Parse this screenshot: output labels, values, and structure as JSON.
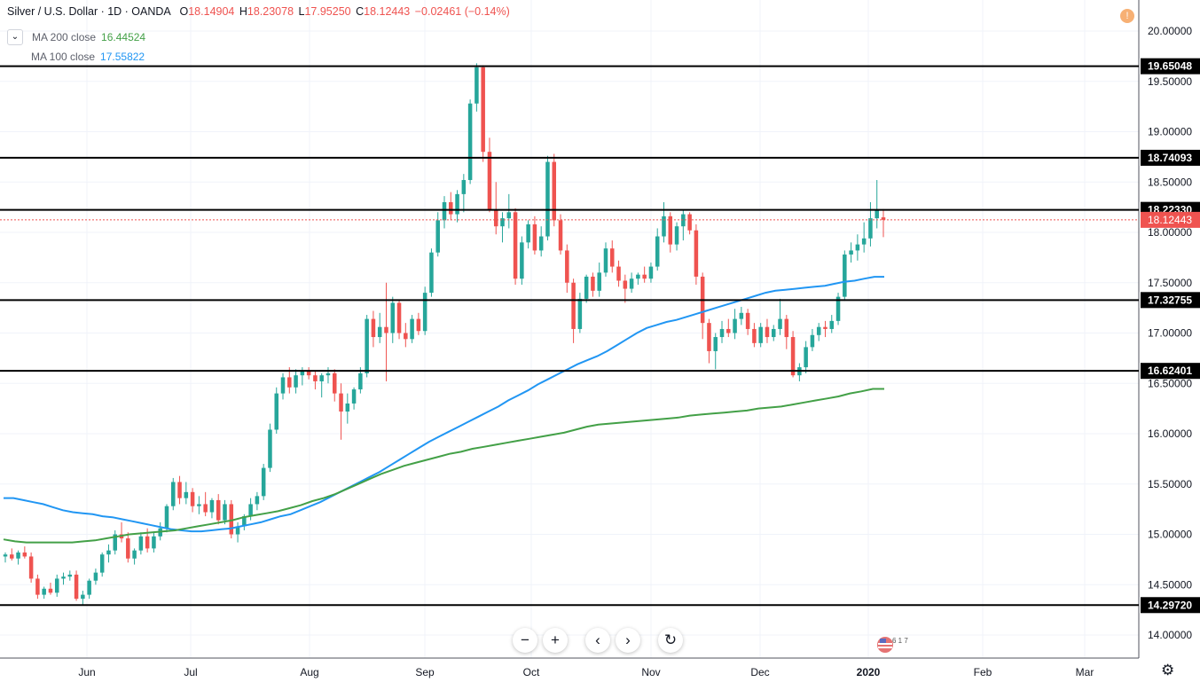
{
  "header": {
    "symbol": "Silver / U.S. Dollar · 1D · OANDA",
    "open_label": "O",
    "open": "18.14904",
    "high_label": "H",
    "high": "18.23078",
    "low_label": "L",
    "low": "17.95250",
    "close_label": "C",
    "close": "18.12443",
    "change": "−0.02461 (−0.14%)"
  },
  "indicators": [
    {
      "name": "MA 200 close",
      "value": "16.44524",
      "color": "#43a047"
    },
    {
      "name": "MA 100 close",
      "value": "17.55822",
      "color": "#2196f3"
    }
  ],
  "collapse_glyph": "⌄",
  "colors": {
    "up": "#26a69a",
    "down": "#ef5350",
    "grid": "#f0f3fa",
    "axis": "#131722"
  },
  "toolbar": {
    "zoom_out": "−",
    "zoom_in": "+",
    "back": "‹",
    "forward": "›",
    "reset": "↻"
  },
  "icons": {
    "alert": "!",
    "settings": "⚙",
    "event_count": "6 1 7"
  },
  "chart_data": {
    "type": "candlestick",
    "title": "Silver / U.S. Dollar · 1D · OANDA",
    "y_axis": {
      "range": [
        13.86,
        20.3
      ],
      "ticks": [
        "20.00000",
        "19.50000",
        "19.00000",
        "18.50000",
        "18.00000",
        "17.50000",
        "17.00000",
        "16.50000",
        "16.00000",
        "15.50000",
        "15.00000",
        "14.50000",
        "14.00000"
      ]
    },
    "x_axis": {
      "ticks": [
        "Jun",
        "Jul",
        "Aug",
        "Sep",
        "Oct",
        "Nov",
        "Dec",
        "2020",
        "Feb",
        "Mar"
      ]
    },
    "horizontal_levels": [
      "19.65048",
      "18.74093",
      "18.22330",
      "17.32755",
      "16.62401",
      "14.29720"
    ],
    "last_price": "18.12443",
    "candles": [
      [
        14.78,
        14.82,
        14.72,
        14.8
      ],
      [
        14.8,
        14.86,
        14.74,
        14.76
      ],
      [
        14.76,
        14.84,
        14.7,
        14.82
      ],
      [
        14.82,
        14.88,
        14.76,
        14.78
      ],
      [
        14.78,
        14.82,
        14.52,
        14.56
      ],
      [
        14.56,
        14.6,
        14.36,
        14.4
      ],
      [
        14.4,
        14.48,
        14.36,
        14.46
      ],
      [
        14.46,
        14.52,
        14.4,
        14.42
      ],
      [
        14.42,
        14.6,
        14.38,
        14.56
      ],
      [
        14.56,
        14.62,
        14.5,
        14.58
      ],
      [
        14.58,
        14.64,
        14.54,
        14.6
      ],
      [
        14.6,
        14.64,
        14.34,
        14.36
      ],
      [
        14.36,
        14.44,
        14.3,
        14.4
      ],
      [
        14.4,
        14.56,
        14.36,
        14.54
      ],
      [
        14.54,
        14.66,
        14.5,
        14.62
      ],
      [
        14.62,
        14.82,
        14.58,
        14.8
      ],
      [
        14.8,
        14.9,
        14.72,
        14.84
      ],
      [
        14.84,
        15.04,
        14.8,
        15.0
      ],
      [
        15.0,
        15.12,
        14.92,
        14.96
      ],
      [
        14.96,
        15.02,
        14.72,
        14.76
      ],
      [
        14.76,
        14.86,
        14.7,
        14.84
      ],
      [
        14.84,
        15.02,
        14.8,
        14.98
      ],
      [
        14.98,
        15.06,
        14.82,
        14.86
      ],
      [
        14.86,
        15.02,
        14.82,
        14.98
      ],
      [
        14.98,
        15.12,
        14.94,
        15.06
      ],
      [
        15.06,
        15.3,
        15.02,
        15.28
      ],
      [
        15.28,
        15.56,
        15.24,
        15.52
      ],
      [
        15.52,
        15.58,
        15.3,
        15.36
      ],
      [
        15.36,
        15.52,
        15.3,
        15.42
      ],
      [
        15.42,
        15.46,
        15.22,
        15.28
      ],
      [
        15.28,
        15.38,
        15.2,
        15.3
      ],
      [
        15.3,
        15.42,
        15.18,
        15.22
      ],
      [
        15.22,
        15.36,
        15.16,
        15.34
      ],
      [
        15.34,
        15.4,
        15.1,
        15.14
      ],
      [
        15.14,
        15.34,
        15.1,
        15.3
      ],
      [
        15.3,
        15.34,
        14.96,
        15.0
      ],
      [
        15.0,
        15.12,
        14.92,
        15.08
      ],
      [
        15.08,
        15.2,
        15.04,
        15.18
      ],
      [
        15.18,
        15.36,
        15.14,
        15.3
      ],
      [
        15.3,
        15.42,
        15.24,
        15.38
      ],
      [
        15.38,
        15.7,
        15.34,
        15.66
      ],
      [
        15.66,
        16.1,
        15.62,
        16.04
      ],
      [
        16.04,
        16.46,
        16.0,
        16.4
      ],
      [
        16.4,
        16.6,
        16.34,
        16.56
      ],
      [
        16.56,
        16.66,
        16.4,
        16.46
      ],
      [
        16.46,
        16.64,
        16.4,
        16.58
      ],
      [
        16.58,
        16.66,
        16.48,
        16.62
      ],
      [
        16.62,
        16.66,
        16.54,
        16.58
      ],
      [
        16.58,
        16.62,
        16.44,
        16.52
      ],
      [
        16.52,
        16.6,
        16.36,
        16.58
      ],
      [
        16.58,
        16.66,
        16.5,
        16.6
      ],
      [
        16.6,
        16.64,
        16.32,
        16.4
      ],
      [
        16.4,
        16.5,
        15.94,
        16.22
      ],
      [
        16.22,
        16.4,
        16.1,
        16.3
      ],
      [
        16.3,
        16.46,
        16.24,
        16.44
      ],
      [
        16.44,
        16.66,
        16.4,
        16.6
      ],
      [
        16.6,
        17.18,
        16.56,
        17.14
      ],
      [
        17.14,
        17.22,
        16.86,
        16.96
      ],
      [
        16.96,
        17.2,
        16.9,
        17.06
      ],
      [
        17.06,
        17.5,
        16.52,
        17.0
      ],
      [
        17.0,
        17.36,
        16.9,
        17.3
      ],
      [
        17.3,
        17.32,
        16.94,
        17.0
      ],
      [
        17.0,
        17.1,
        16.86,
        16.94
      ],
      [
        16.94,
        17.18,
        16.9,
        17.14
      ],
      [
        17.14,
        17.2,
        16.98,
        17.02
      ],
      [
        17.02,
        17.46,
        16.98,
        17.4
      ],
      [
        17.4,
        17.84,
        17.36,
        17.8
      ],
      [
        17.8,
        18.2,
        17.76,
        18.12
      ],
      [
        18.12,
        18.36,
        18.04,
        18.3
      ],
      [
        18.3,
        18.4,
        18.12,
        18.18
      ],
      [
        18.18,
        18.42,
        18.1,
        18.38
      ],
      [
        18.38,
        18.58,
        18.2,
        18.52
      ],
      [
        18.52,
        19.32,
        18.48,
        19.28
      ],
      [
        19.28,
        19.68,
        19.2,
        19.64
      ],
      [
        19.64,
        19.66,
        18.7,
        18.8
      ],
      [
        18.8,
        18.94,
        18.2,
        18.22
      ],
      [
        18.22,
        18.5,
        17.98,
        18.06
      ],
      [
        18.06,
        18.2,
        17.9,
        18.14
      ],
      [
        18.14,
        18.38,
        18.04,
        18.2
      ],
      [
        18.2,
        18.24,
        17.48,
        17.54
      ],
      [
        17.54,
        17.96,
        17.48,
        17.9
      ],
      [
        17.9,
        18.12,
        17.84,
        18.08
      ],
      [
        18.08,
        18.16,
        17.78,
        17.82
      ],
      [
        17.82,
        18.06,
        17.76,
        17.96
      ],
      [
        17.96,
        18.76,
        17.92,
        18.7
      ],
      [
        18.7,
        18.78,
        18.06,
        18.12
      ],
      [
        18.12,
        18.18,
        17.78,
        17.82
      ],
      [
        17.82,
        17.88,
        17.4,
        17.5
      ],
      [
        17.5,
        17.54,
        16.9,
        17.04
      ],
      [
        17.04,
        17.4,
        17.0,
        17.34
      ],
      [
        17.34,
        17.58,
        17.3,
        17.56
      ],
      [
        17.56,
        17.6,
        17.36,
        17.42
      ],
      [
        17.42,
        17.7,
        17.36,
        17.6
      ],
      [
        17.6,
        17.9,
        17.56,
        17.84
      ],
      [
        17.84,
        17.92,
        17.6,
        17.66
      ],
      [
        17.66,
        17.72,
        17.46,
        17.52
      ],
      [
        17.52,
        17.58,
        17.3,
        17.44
      ],
      [
        17.44,
        17.6,
        17.4,
        17.54
      ],
      [
        17.54,
        17.6,
        17.48,
        17.58
      ],
      [
        17.58,
        17.66,
        17.5,
        17.54
      ],
      [
        17.54,
        17.7,
        17.5,
        17.66
      ],
      [
        17.66,
        18.04,
        17.62,
        17.96
      ],
      [
        17.96,
        18.3,
        17.9,
        18.16
      ],
      [
        18.16,
        18.2,
        17.8,
        17.88
      ],
      [
        17.88,
        18.1,
        17.82,
        18.06
      ],
      [
        18.06,
        18.22,
        17.92,
        18.18
      ],
      [
        18.18,
        18.2,
        17.98,
        18.02
      ],
      [
        18.02,
        18.08,
        17.48,
        17.56
      ],
      [
        17.56,
        17.6,
        16.94,
        17.1
      ],
      [
        17.1,
        17.14,
        16.7,
        16.82
      ],
      [
        16.82,
        17.0,
        16.64,
        16.96
      ],
      [
        16.96,
        17.12,
        16.9,
        17.04
      ],
      [
        17.04,
        17.14,
        16.96,
        17.0
      ],
      [
        17.0,
        17.24,
        16.94,
        17.14
      ],
      [
        17.14,
        17.26,
        17.08,
        17.2
      ],
      [
        17.2,
        17.24,
        16.98,
        17.04
      ],
      [
        17.04,
        17.1,
        16.86,
        16.9
      ],
      [
        16.9,
        17.1,
        16.86,
        17.06
      ],
      [
        17.06,
        17.14,
        16.9,
        16.96
      ],
      [
        16.96,
        17.08,
        16.92,
        17.04
      ],
      [
        17.04,
        17.34,
        16.98,
        17.14
      ],
      [
        17.14,
        17.18,
        16.84,
        16.96
      ],
      [
        16.96,
        17.02,
        16.56,
        16.58
      ],
      [
        16.58,
        16.7,
        16.52,
        16.66
      ],
      [
        16.66,
        16.92,
        16.6,
        16.86
      ],
      [
        16.86,
        17.04,
        16.82,
        16.98
      ],
      [
        16.98,
        17.1,
        16.92,
        17.06
      ],
      [
        17.06,
        17.12,
        16.96,
        17.04
      ],
      [
        17.04,
        17.18,
        17.0,
        17.12
      ],
      [
        17.12,
        17.4,
        17.08,
        17.36
      ],
      [
        17.36,
        17.82,
        17.32,
        17.78
      ],
      [
        17.78,
        17.9,
        17.7,
        17.82
      ],
      [
        17.82,
        17.98,
        17.72,
        17.88
      ],
      [
        17.88,
        18.1,
        17.8,
        17.94
      ],
      [
        17.94,
        18.3,
        17.86,
        18.14
      ],
      [
        18.14,
        18.52,
        18.04,
        18.22
      ],
      [
        18.14904,
        18.23078,
        17.9525,
        18.12443
      ]
    ],
    "ma100": [
      [
        15.36,
        15.36
      ],
      [
        15.34,
        15.32
      ],
      [
        15.3,
        15.27
      ],
      [
        15.24,
        15.22
      ],
      [
        15.21,
        15.2
      ],
      [
        15.18,
        15.17
      ],
      [
        15.15,
        15.13
      ],
      [
        15.11,
        15.09
      ],
      [
        15.07,
        15.05
      ],
      [
        15.04,
        15.03
      ],
      [
        15.03,
        15.04
      ],
      [
        15.05,
        15.06
      ],
      [
        15.08,
        15.1
      ],
      [
        15.12,
        15.15
      ],
      [
        15.18,
        15.2
      ],
      [
        15.24,
        15.28
      ],
      [
        15.32,
        15.37
      ],
      [
        15.42,
        15.47
      ],
      [
        15.52,
        15.57
      ],
      [
        15.62,
        15.68
      ],
      [
        15.74,
        15.8
      ],
      [
        15.86,
        15.92
      ],
      [
        15.97,
        16.02
      ],
      [
        16.07,
        16.12
      ],
      [
        16.17,
        16.22
      ],
      [
        16.27,
        16.33
      ],
      [
        16.38,
        16.43
      ],
      [
        16.49,
        16.54
      ],
      [
        16.59,
        16.64
      ],
      [
        16.69,
        16.73
      ],
      [
        16.77,
        16.82
      ],
      [
        16.88,
        16.94
      ],
      [
        17.0,
        17.05
      ],
      [
        17.08,
        17.11
      ],
      [
        17.13,
        17.16
      ],
      [
        17.19,
        17.22
      ],
      [
        17.25,
        17.28
      ],
      [
        17.31,
        17.34
      ],
      [
        17.37,
        17.4
      ],
      [
        17.42,
        17.43
      ],
      [
        17.44,
        17.45
      ],
      [
        17.46,
        17.47
      ],
      [
        17.49,
        17.51
      ],
      [
        17.52,
        17.54
      ],
      [
        17.55822,
        17.55822
      ]
    ],
    "ma200": [
      [
        14.95,
        14.93
      ],
      [
        14.92,
        14.92
      ],
      [
        14.92,
        14.92
      ],
      [
        14.92,
        14.93
      ],
      [
        14.94,
        14.96
      ],
      [
        14.98,
        15.0
      ],
      [
        15.01,
        15.02
      ],
      [
        15.03,
        15.04
      ],
      [
        15.06,
        15.08
      ],
      [
        15.1,
        15.12
      ],
      [
        15.14,
        15.17
      ],
      [
        15.19,
        15.21
      ],
      [
        15.23,
        15.26
      ],
      [
        15.29,
        15.33
      ],
      [
        15.36,
        15.4
      ],
      [
        15.45,
        15.5
      ],
      [
        15.55,
        15.6
      ],
      [
        15.64,
        15.68
      ],
      [
        15.71,
        15.74
      ],
      [
        15.77,
        15.8
      ],
      [
        15.82,
        15.85
      ],
      [
        15.87,
        15.89
      ],
      [
        15.91,
        15.93
      ],
      [
        15.95,
        15.97
      ],
      [
        15.99,
        16.01
      ],
      [
        16.04,
        16.07
      ],
      [
        16.09,
        16.1
      ],
      [
        16.11,
        16.12
      ],
      [
        16.13,
        16.14
      ],
      [
        16.15,
        16.16
      ],
      [
        16.18,
        16.19
      ],
      [
        16.2,
        16.21
      ],
      [
        16.22,
        16.23
      ],
      [
        16.25,
        16.26
      ],
      [
        16.27,
        16.29
      ],
      [
        16.31,
        16.33
      ],
      [
        16.35,
        16.37
      ],
      [
        16.4,
        16.42
      ],
      [
        16.44524,
        16.44524
      ]
    ]
  }
}
